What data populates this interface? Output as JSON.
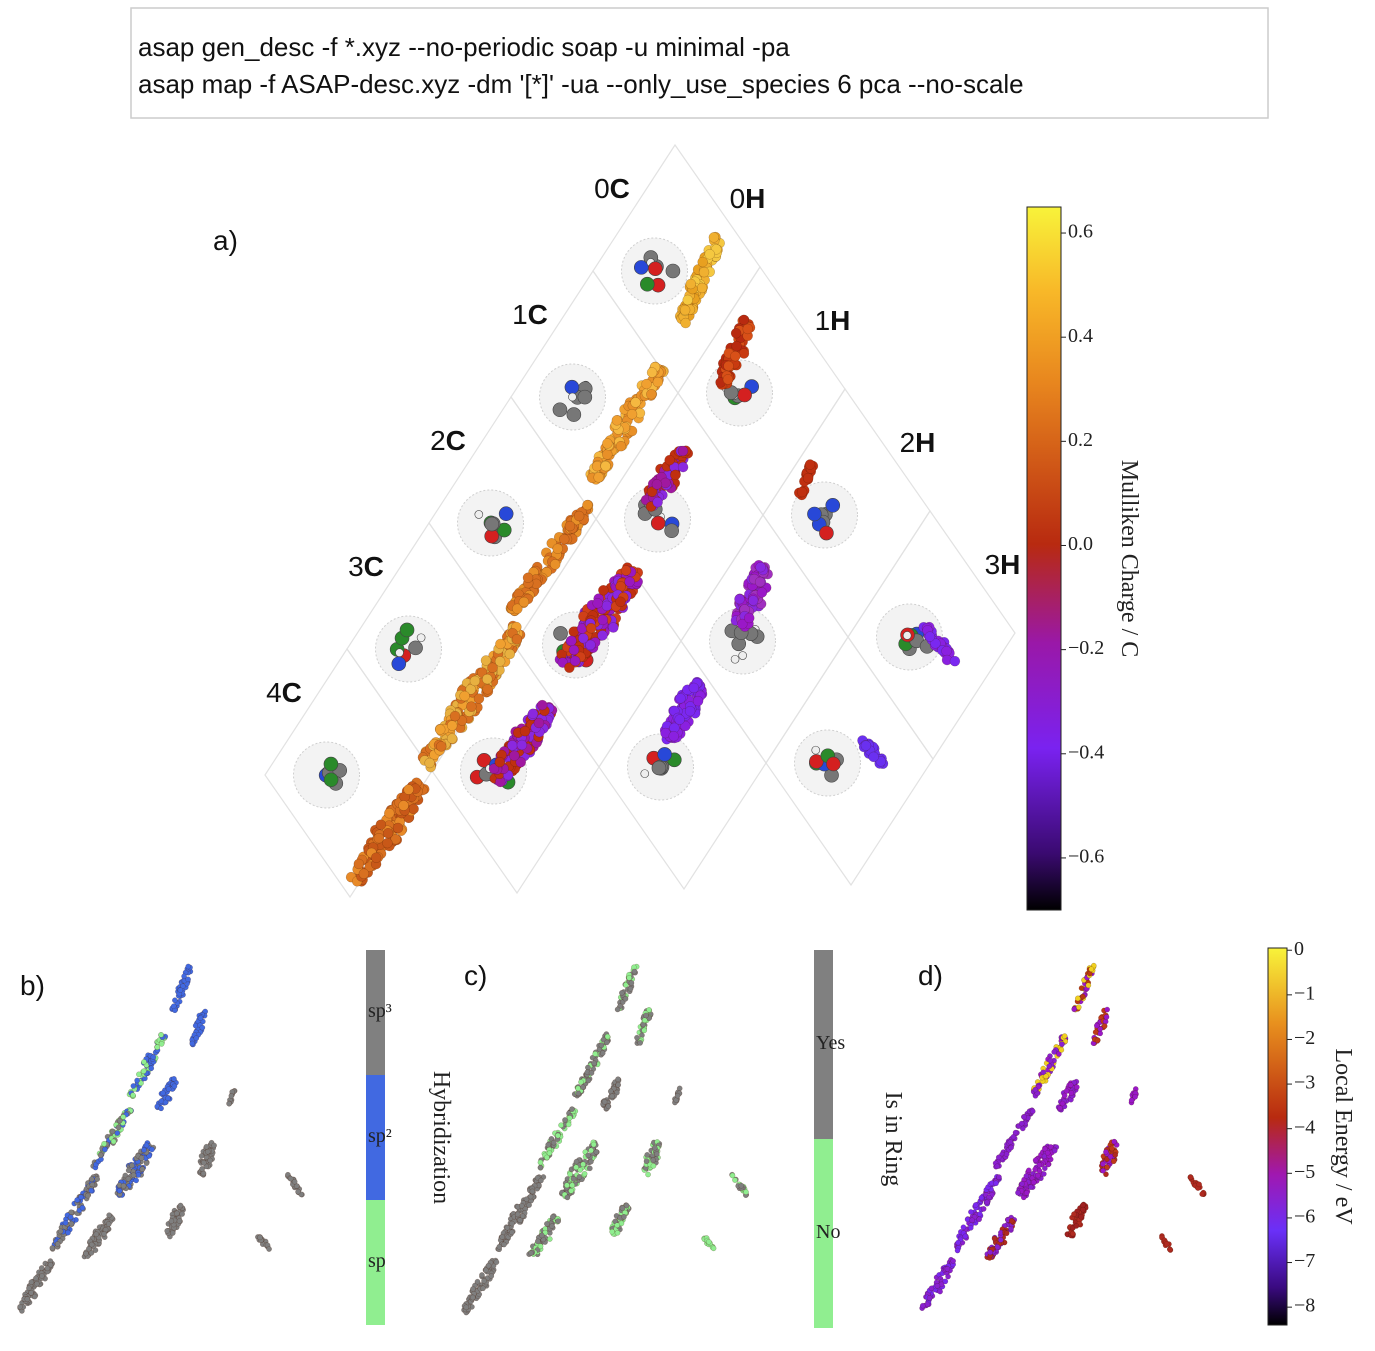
{
  "command": {
    "lines": [
      "asap gen_desc -f *.xyz --no-periodic soap -u minimal -pa",
      "asap map -f ASAP-desc.xyz -dm '[*]' -ua --only_use_species 6 pca --no-scale"
    ]
  },
  "panel_a": {
    "label": "a)",
    "carbon_labels": [
      {
        "count": "0",
        "element": "C"
      },
      {
        "count": "1",
        "element": "C"
      },
      {
        "count": "2",
        "element": "C"
      },
      {
        "count": "3",
        "element": "C"
      },
      {
        "count": "4",
        "element": "C"
      }
    ],
    "hydrogen_labels": [
      {
        "count": "0",
        "element": "H"
      },
      {
        "count": "1",
        "element": "H"
      },
      {
        "count": "2",
        "element": "H"
      },
      {
        "count": "3",
        "element": "H"
      }
    ],
    "colorbar": {
      "title": "Mulliken Charge / C",
      "lim": [
        -0.7,
        0.65
      ],
      "ticks": [
        0.6,
        0.4,
        0.2,
        {
          "value": 0,
          "label": "0.0"
        },
        {
          "value": -0.2,
          "label": "−0.2"
        },
        {
          "value": -0.4,
          "label": "−0.4"
        },
        {
          "value": -0.6,
          "label": "−0.6"
        }
      ]
    }
  },
  "panel_b": {
    "label": "b)",
    "colorbar": {
      "title": "Hybridization",
      "categories": [
        "sp³",
        "sp²",
        "sp"
      ],
      "colors": [
        "#808080",
        "#4169e1",
        "#90ee90"
      ]
    }
  },
  "panel_c": {
    "label": "c)",
    "colorbar": {
      "title": "Is in Ring",
      "categories": [
        "Yes",
        "No"
      ],
      "colors": [
        "#808080",
        "#90ee90"
      ]
    }
  },
  "panel_d": {
    "label": "d)",
    "colorbar": {
      "title": "Local Energy / eV",
      "lim": [
        -8.4,
        0.05
      ],
      "ticks": [
        0,
        {
          "value": -1,
          "label": "−1"
        },
        {
          "value": -2,
          "label": "−2"
        },
        {
          "value": -3,
          "label": "−3"
        },
        {
          "value": -4,
          "label": "−4"
        },
        {
          "value": -5,
          "label": "−5"
        },
        {
          "value": -6,
          "label": "−6"
        },
        {
          "value": -7,
          "label": "−7"
        },
        {
          "value": -8,
          "label": "−8"
        }
      ]
    }
  }
}
